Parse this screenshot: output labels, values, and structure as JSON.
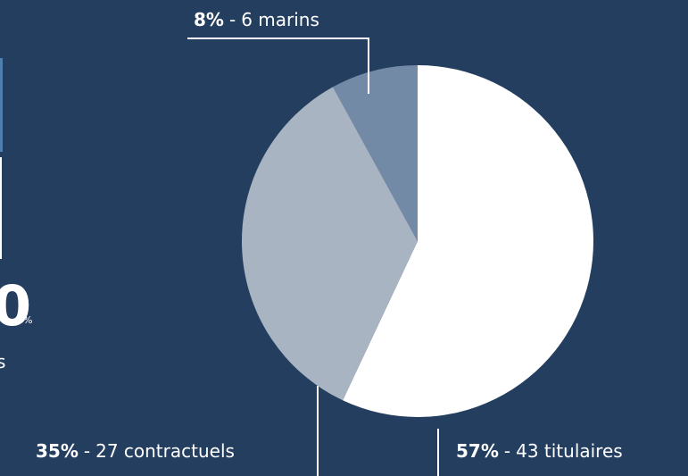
{
  "chart_data": {
    "type": "pie",
    "labels": [
      "43 titulaires",
      "27 contractuels",
      "6 marins"
    ],
    "values": [
      57,
      35,
      8
    ],
    "value_labels": [
      "57%",
      "35%",
      "8%"
    ],
    "colors": [
      "#ffffff",
      "#a9b4c2",
      "#738aa6"
    ],
    "separator": "-"
  },
  "left_partial": {
    "number": "0",
    "unit": "%",
    "caption": "s"
  }
}
